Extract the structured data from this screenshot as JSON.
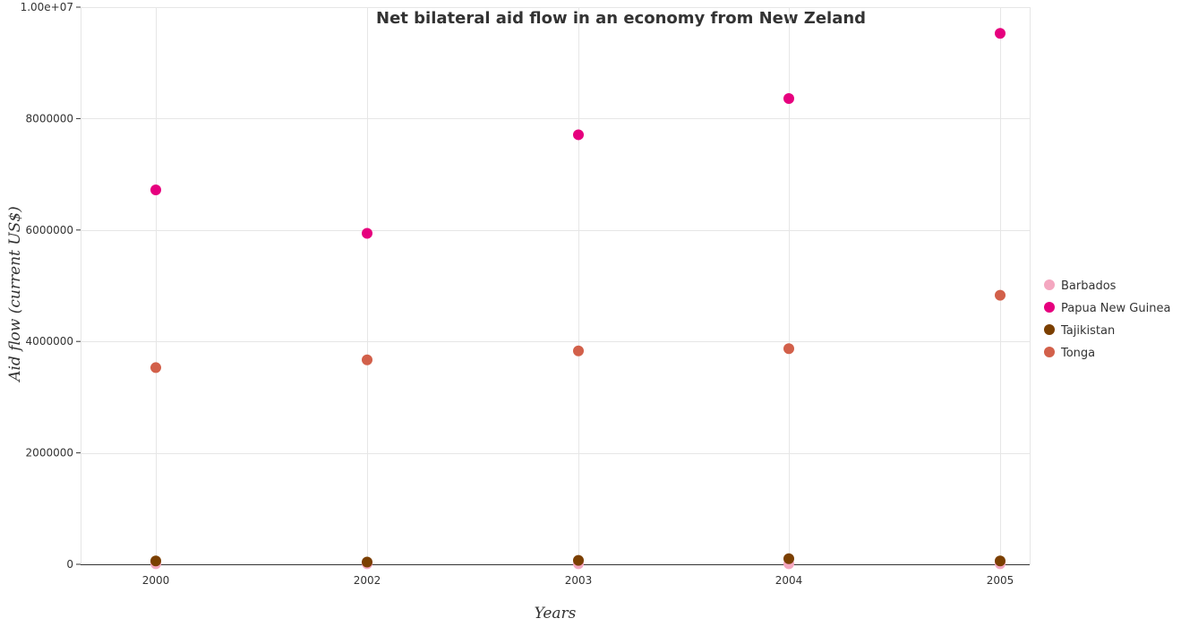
{
  "chart_data": {
    "type": "scatter",
    "title": "Net bilateral aid flow in an economy from New Zeland",
    "xlabel": "Years",
    "ylabel": "Aid flow (current US$)",
    "categories": [
      "2000",
      "2002",
      "2003",
      "2004",
      "2005"
    ],
    "ylim": [
      0,
      10000000
    ],
    "yticks": [
      0,
      2000000,
      4000000,
      6000000,
      8000000,
      10000000
    ],
    "ytick_labels": [
      "0",
      "2000000",
      "4000000",
      "6000000",
      "8000000",
      "1.00e+07"
    ],
    "grid": true,
    "legend_position": "right",
    "series": [
      {
        "name": "Barbados",
        "color": "#f4a7c0",
        "values": [
          10000,
          10000,
          10000,
          10000,
          10000
        ]
      },
      {
        "name": "Papua New Guinea",
        "color": "#e6007e",
        "values": [
          6720000,
          5940000,
          7710000,
          8360000,
          9530000
        ]
      },
      {
        "name": "Tajikistan",
        "color": "#7b3f00",
        "values": [
          60000,
          40000,
          70000,
          100000,
          60000
        ]
      },
      {
        "name": "Tonga",
        "color": "#d2604a",
        "values": [
          3530000,
          3670000,
          3830000,
          3870000,
          4830000
        ]
      }
    ]
  }
}
